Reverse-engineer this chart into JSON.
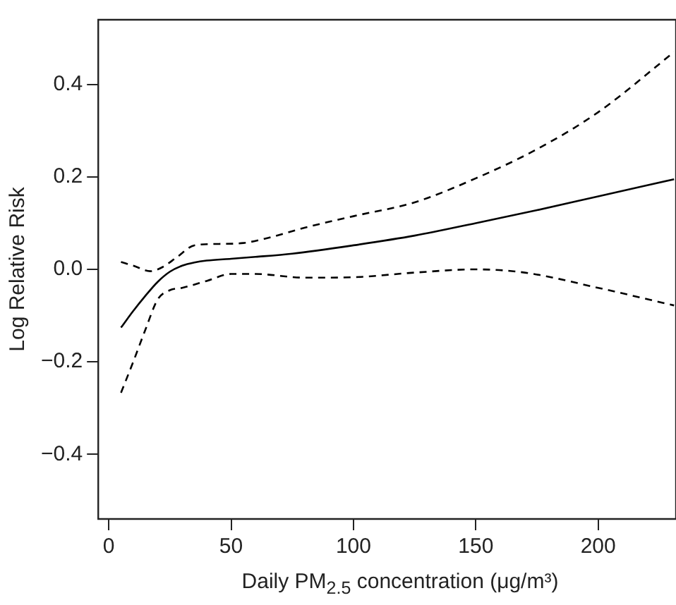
{
  "chart_data": {
    "type": "line",
    "xlabel": "Daily PM$_{2.5}$ concentration (μg/m³)",
    "ylabel": "Log Relative Risk",
    "xlim": [
      -4.3,
      231.8
    ],
    "xticks": [
      0,
      50,
      100,
      150,
      200
    ],
    "ylim": [
      -0.54,
      0.54
    ],
    "yticks": [
      -0.4,
      -0.2,
      {
        "value": 0,
        "label": "0.0"
      },
      0.2,
      0.4
    ],
    "grid": false,
    "legend": false,
    "marker": "none",
    "series": [
      {
        "color": "#000000",
        "line_style": "solid",
        "x": [
          5,
          10,
          15,
          20,
          25,
          30,
          35,
          40,
          50,
          60,
          75,
          100,
          125,
          150,
          175,
          200,
          231
        ],
        "values": [
          -0.126,
          -0.09,
          -0.057,
          -0.027,
          -0.005,
          0.008,
          0.015,
          0.019,
          0.023,
          0.027,
          0.034,
          0.052,
          0.073,
          0.1,
          0.128,
          0.158,
          0.195
        ]
      },
      {
        "color": "#000000",
        "line_style": "dashed",
        "x": [
          5,
          10,
          17,
          22,
          28,
          35,
          45,
          55,
          65,
          80,
          100,
          125,
          150,
          175,
          200,
          231
        ],
        "values": [
          0.016,
          0.008,
          -0.004,
          0.005,
          0.027,
          0.052,
          0.055,
          0.057,
          0.068,
          0.09,
          0.115,
          0.145,
          0.197,
          0.26,
          0.34,
          0.47
        ]
      },
      {
        "color": "#000000",
        "line_style": "dashed",
        "x": [
          5,
          10,
          15,
          20,
          25,
          30,
          40,
          50,
          60,
          80,
          100,
          125,
          150,
          170,
          200,
          231
        ],
        "values": [
          -0.267,
          -0.2,
          -0.13,
          -0.065,
          -0.045,
          -0.04,
          -0.025,
          -0.01,
          -0.01,
          -0.018,
          -0.017,
          -0.007,
          0,
          -0.007,
          -0.04,
          -0.078
        ]
      }
    ]
  }
}
